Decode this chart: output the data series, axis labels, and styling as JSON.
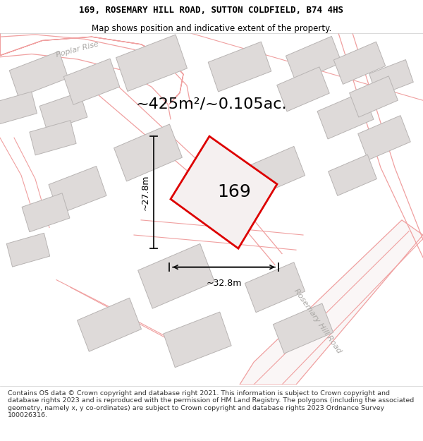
{
  "title_line1": "169, ROSEMARY HILL ROAD, SUTTON COLDFIELD, B74 4HS",
  "title_line2": "Map shows position and indicative extent of the property.",
  "area_text": "~425m²/~0.105ac.",
  "property_label": "169",
  "dim_width": "~32.8m",
  "dim_height": "~27.8m",
  "street_label1": "Rosemary Hill Road",
  "street_label2": "Poplar Rise",
  "footer_text": "Contains OS data © Crown copyright and database right 2021. This information is subject to Crown copyright and database rights 2023 and is reproduced with the permission of HM Land Registry. The polygons (including the associated geometry, namely x, y co-ordinates) are subject to Crown copyright and database rights 2023 Ordnance Survey 100026316.",
  "map_bg": "#f7f4f4",
  "building_fill": "#dedad9",
  "building_edge": "#b8b4b3",
  "property_edge": "#dd0000",
  "property_fill": "#f7f4f4",
  "dim_line_color": "#111111",
  "road_line_color": "#f0a0a0",
  "road_fill": "#faf6f6",
  "title_fontsize": 9.0,
  "subtitle_fontsize": 8.5,
  "area_fontsize": 16,
  "label_fontsize": 18,
  "footer_fontsize": 6.8,
  "street_fontsize": 8.0,
  "street_color": "#aaa8a5"
}
